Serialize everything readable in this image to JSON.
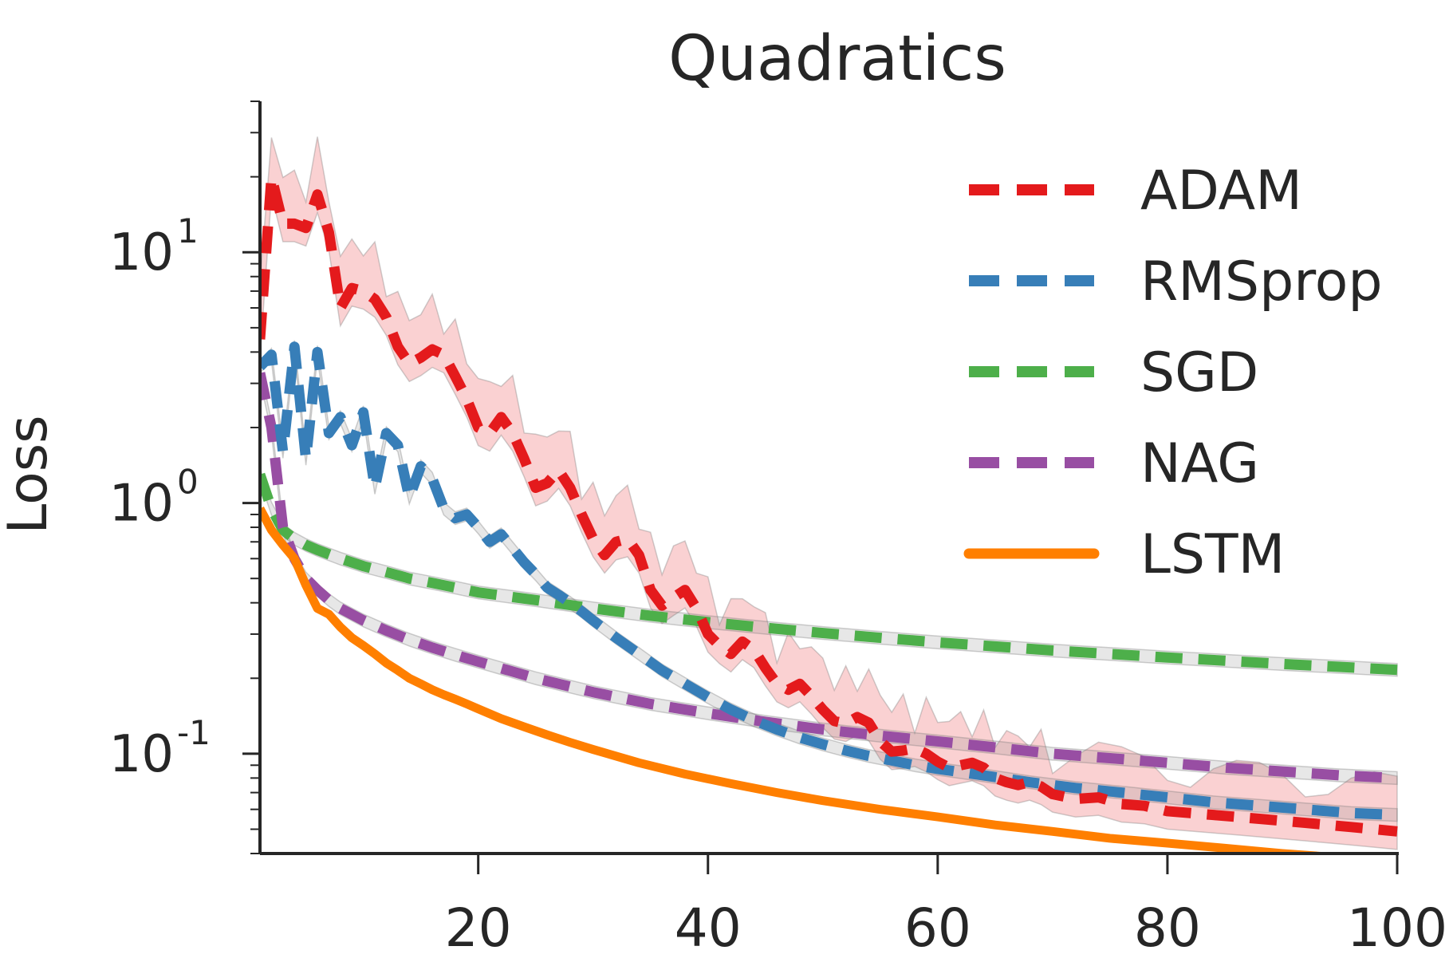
{
  "chart_data": {
    "type": "line",
    "title": "Quadratics",
    "xlabel": "",
    "ylabel": "Loss",
    "xlim": [
      1,
      100
    ],
    "ylim": [
      0.04,
      40
    ],
    "yscale": "log",
    "xticks": [
      "20",
      "40",
      "60",
      "80",
      "100"
    ],
    "yticks": [
      {
        "base": "10",
        "exp": "1",
        "value": 10
      },
      {
        "base": "10",
        "exp": "0",
        "value": 1
      },
      {
        "base": "10",
        "exp": "-1",
        "value": 0.1
      }
    ],
    "legend_position": "upper-right",
    "grid": false,
    "series": [
      {
        "name": "ADAM",
        "color": "#e41a1c",
        "style": "dashed",
        "band": true,
        "points": [
          [
            1,
            4.5
          ],
          [
            2,
            20
          ],
          [
            3,
            13
          ],
          [
            4,
            13
          ],
          [
            5,
            12.5
          ],
          [
            6,
            17
          ],
          [
            7,
            12
          ],
          [
            8,
            6
          ],
          [
            9,
            7.2
          ],
          [
            10,
            7
          ],
          [
            11,
            6.5
          ],
          [
            12,
            5.5
          ],
          [
            13,
            4.2
          ],
          [
            14,
            3.6
          ],
          [
            15,
            3.8
          ],
          [
            16,
            4.1
          ],
          [
            17,
            3.9
          ],
          [
            18,
            3.2
          ],
          [
            19,
            2.6
          ],
          [
            20,
            2.0
          ],
          [
            21,
            1.9
          ],
          [
            22,
            2.2
          ],
          [
            23,
            1.9
          ],
          [
            24,
            1.5
          ],
          [
            25,
            1.15
          ],
          [
            26,
            1.2
          ],
          [
            27,
            1.35
          ],
          [
            28,
            1.15
          ],
          [
            29,
            0.9
          ],
          [
            30,
            0.72
          ],
          [
            31,
            0.62
          ],
          [
            32,
            0.7
          ],
          [
            33,
            0.72
          ],
          [
            34,
            0.62
          ],
          [
            35,
            0.45
          ],
          [
            36,
            0.39
          ],
          [
            37,
            0.42
          ],
          [
            38,
            0.45
          ],
          [
            39,
            0.38
          ],
          [
            40,
            0.3
          ],
          [
            41,
            0.27
          ],
          [
            42,
            0.25
          ],
          [
            43,
            0.28
          ],
          [
            44,
            0.26
          ],
          [
            45,
            0.22
          ],
          [
            46,
            0.19
          ],
          [
            47,
            0.18
          ],
          [
            48,
            0.19
          ],
          [
            49,
            0.17
          ],
          [
            50,
            0.15
          ],
          [
            51,
            0.135
          ],
          [
            52,
            0.132
          ],
          [
            53,
            0.14
          ],
          [
            54,
            0.133
          ],
          [
            55,
            0.112
          ],
          [
            56,
            0.102
          ],
          [
            57,
            0.103
          ],
          [
            58,
            0.105
          ],
          [
            59,
            0.1
          ],
          [
            60,
            0.093
          ],
          [
            61,
            0.088
          ],
          [
            62,
            0.09
          ],
          [
            63,
            0.092
          ],
          [
            64,
            0.088
          ],
          [
            65,
            0.08
          ],
          [
            66,
            0.077
          ],
          [
            67,
            0.075
          ],
          [
            68,
            0.077
          ],
          [
            69,
            0.074
          ],
          [
            70,
            0.069
          ],
          [
            72,
            0.066
          ],
          [
            74,
            0.067
          ],
          [
            76,
            0.063
          ],
          [
            78,
            0.062
          ],
          [
            80,
            0.059
          ],
          [
            82,
            0.058
          ],
          [
            84,
            0.057
          ],
          [
            86,
            0.056
          ],
          [
            88,
            0.055
          ],
          [
            90,
            0.054
          ],
          [
            92,
            0.053
          ],
          [
            94,
            0.052
          ],
          [
            96,
            0.051
          ],
          [
            98,
            0.05
          ],
          [
            100,
            0.049
          ]
        ]
      },
      {
        "name": "RMSprop",
        "color": "#377eb8",
        "style": "dashed",
        "band": true,
        "points": [
          [
            1,
            3.5
          ],
          [
            2,
            3.9
          ],
          [
            3,
            1.6
          ],
          [
            4,
            4.2
          ],
          [
            5,
            1.5
          ],
          [
            6,
            4.0
          ],
          [
            7,
            1.9
          ],
          [
            8,
            2.2
          ],
          [
            9,
            1.7
          ],
          [
            10,
            2.3
          ],
          [
            11,
            1.15
          ],
          [
            12,
            1.9
          ],
          [
            13,
            1.7
          ],
          [
            14,
            1.05
          ],
          [
            15,
            1.4
          ],
          [
            16,
            1.25
          ],
          [
            17,
            0.95
          ],
          [
            18,
            0.87
          ],
          [
            19,
            0.9
          ],
          [
            20,
            0.8
          ],
          [
            21,
            0.7
          ],
          [
            22,
            0.75
          ],
          [
            23,
            0.66
          ],
          [
            24,
            0.58
          ],
          [
            25,
            0.52
          ],
          [
            26,
            0.46
          ],
          [
            27,
            0.43
          ],
          [
            28,
            0.4
          ],
          [
            29,
            0.37
          ],
          [
            30,
            0.34
          ],
          [
            32,
            0.29
          ],
          [
            34,
            0.25
          ],
          [
            36,
            0.215
          ],
          [
            38,
            0.19
          ],
          [
            40,
            0.168
          ],
          [
            42,
            0.15
          ],
          [
            44,
            0.136
          ],
          [
            46,
            0.125
          ],
          [
            48,
            0.116
          ],
          [
            50,
            0.109
          ],
          [
            52,
            0.103
          ],
          [
            54,
            0.098
          ],
          [
            56,
            0.094
          ],
          [
            58,
            0.09
          ],
          [
            60,
            0.087
          ],
          [
            64,
            0.082
          ],
          [
            68,
            0.077
          ],
          [
            72,
            0.073
          ],
          [
            76,
            0.07
          ],
          [
            80,
            0.067
          ],
          [
            84,
            0.064
          ],
          [
            88,
            0.062
          ],
          [
            92,
            0.06
          ],
          [
            96,
            0.058
          ],
          [
            100,
            0.057
          ]
        ]
      },
      {
        "name": "SGD",
        "color": "#4daf4a",
        "style": "dashed",
        "band": true,
        "points": [
          [
            1,
            1.3
          ],
          [
            2,
            0.95
          ],
          [
            3,
            0.78
          ],
          [
            4,
            0.72
          ],
          [
            5,
            0.68
          ],
          [
            6,
            0.65
          ],
          [
            8,
            0.6
          ],
          [
            10,
            0.56
          ],
          [
            12,
            0.53
          ],
          [
            14,
            0.5
          ],
          [
            16,
            0.48
          ],
          [
            18,
            0.46
          ],
          [
            20,
            0.44
          ],
          [
            25,
            0.41
          ],
          [
            30,
            0.38
          ],
          [
            35,
            0.355
          ],
          [
            40,
            0.335
          ],
          [
            45,
            0.318
          ],
          [
            50,
            0.303
          ],
          [
            55,
            0.29
          ],
          [
            60,
            0.278
          ],
          [
            65,
            0.268
          ],
          [
            70,
            0.258
          ],
          [
            75,
            0.25
          ],
          [
            80,
            0.242
          ],
          [
            85,
            0.235
          ],
          [
            90,
            0.228
          ],
          [
            95,
            0.222
          ],
          [
            100,
            0.216
          ]
        ]
      },
      {
        "name": "NAG",
        "color": "#984ea3",
        "style": "dashed",
        "band": true,
        "points": [
          [
            1,
            3.3
          ],
          [
            2,
            2.0
          ],
          [
            3,
            0.8
          ],
          [
            4,
            0.6
          ],
          [
            5,
            0.5
          ],
          [
            6,
            0.45
          ],
          [
            7,
            0.41
          ],
          [
            8,
            0.38
          ],
          [
            10,
            0.34
          ],
          [
            12,
            0.31
          ],
          [
            14,
            0.285
          ],
          [
            16,
            0.265
          ],
          [
            18,
            0.248
          ],
          [
            20,
            0.233
          ],
          [
            25,
            0.2
          ],
          [
            30,
            0.176
          ],
          [
            35,
            0.158
          ],
          [
            40,
            0.145
          ],
          [
            45,
            0.134
          ],
          [
            50,
            0.125
          ],
          [
            55,
            0.118
          ],
          [
            60,
            0.112
          ],
          [
            65,
            0.106
          ],
          [
            70,
            0.1
          ],
          [
            75,
            0.096
          ],
          [
            80,
            0.092
          ],
          [
            85,
            0.088
          ],
          [
            90,
            0.085
          ],
          [
            95,
            0.082
          ],
          [
            100,
            0.08
          ]
        ]
      },
      {
        "name": "LSTM",
        "color": "#ff7f00",
        "style": "solid",
        "band": false,
        "points": [
          [
            1,
            0.95
          ],
          [
            2,
            0.78
          ],
          [
            3,
            0.68
          ],
          [
            4,
            0.6
          ],
          [
            5,
            0.47
          ],
          [
            6,
            0.38
          ],
          [
            7,
            0.36
          ],
          [
            8,
            0.32
          ],
          [
            9,
            0.29
          ],
          [
            10,
            0.27
          ],
          [
            11,
            0.25
          ],
          [
            12,
            0.23
          ],
          [
            13,
            0.215
          ],
          [
            14,
            0.2
          ],
          [
            15,
            0.19
          ],
          [
            16,
            0.18
          ],
          [
            17,
            0.172
          ],
          [
            18,
            0.165
          ],
          [
            19,
            0.158
          ],
          [
            20,
            0.151
          ],
          [
            22,
            0.138
          ],
          [
            24,
            0.128
          ],
          [
            26,
            0.119
          ],
          [
            28,
            0.111
          ],
          [
            30,
            0.104
          ],
          [
            34,
            0.092
          ],
          [
            38,
            0.083
          ],
          [
            42,
            0.076
          ],
          [
            46,
            0.07
          ],
          [
            50,
            0.065
          ],
          [
            55,
            0.06
          ],
          [
            60,
            0.056
          ],
          [
            65,
            0.052
          ],
          [
            70,
            0.049
          ],
          [
            75,
            0.046
          ],
          [
            80,
            0.044
          ],
          [
            85,
            0.042
          ],
          [
            90,
            0.04
          ],
          [
            95,
            0.0385
          ],
          [
            100,
            0.037
          ]
        ]
      }
    ]
  }
}
